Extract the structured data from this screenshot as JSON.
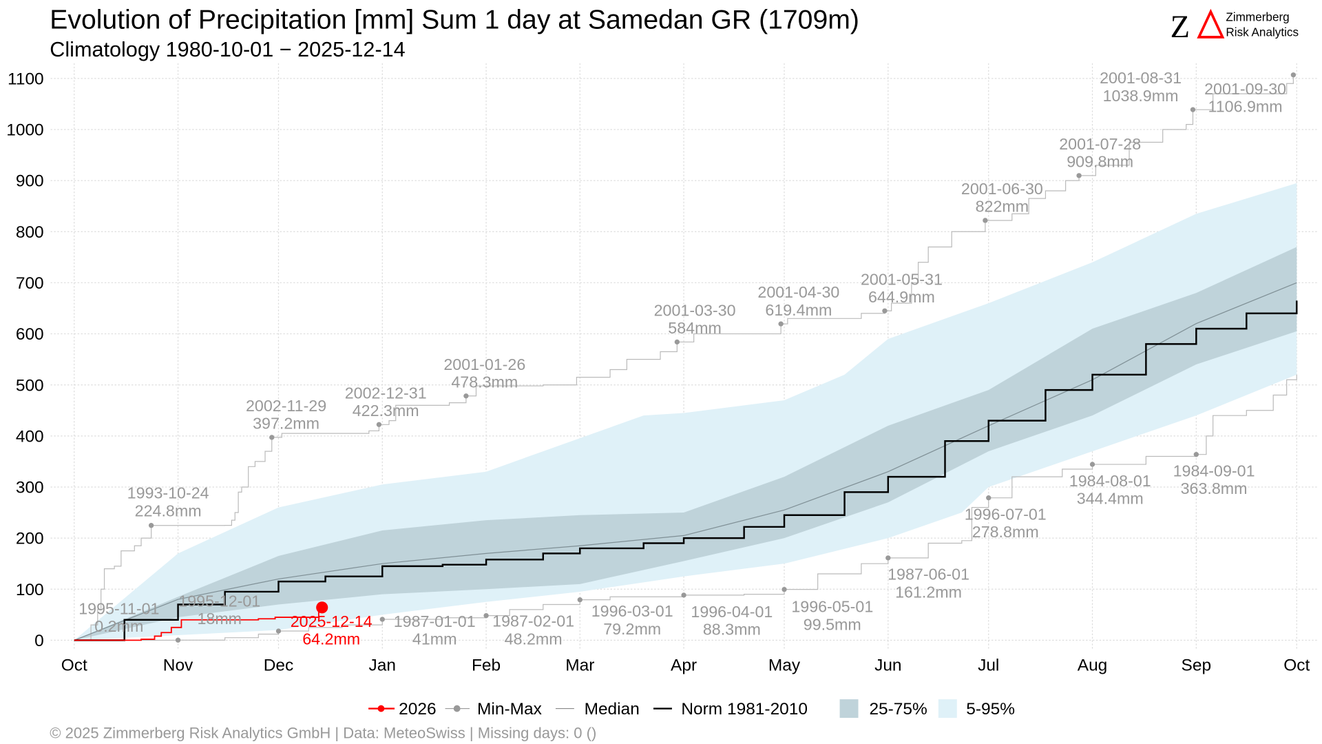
{
  "header": {
    "title": "Evolution of Precipitation [mm] Sum 1 day at Samedan  GR (1709m)",
    "subtitle": "Climatology 1980-10-01 − 2025-12-14"
  },
  "logo": {
    "mark": "ZΔ",
    "line1": "Zimmerberg",
    "line2": "Risk Analytics"
  },
  "footer": "©  2025 Zimmerberg Risk Analytics GmbH | Data: MeteoSwiss | Missing days: 0 ()",
  "chart_data": {
    "type": "line",
    "title": "Evolution of Precipitation [mm] Sum 1 day at Samedan  GR (1709m)",
    "xlabel": "",
    "ylabel": "",
    "x_unit": "day of hydrological year (starting Oct 1)",
    "ylim": [
      0,
      1100
    ],
    "yticks": [
      0,
      100,
      200,
      300,
      400,
      500,
      600,
      700,
      800,
      900,
      1000,
      1100
    ],
    "xticks": [
      {
        "day": 0,
        "label": "Oct"
      },
      {
        "day": 31,
        "label": "Nov"
      },
      {
        "day": 61,
        "label": "Dec"
      },
      {
        "day": 92,
        "label": "Jan"
      },
      {
        "day": 123,
        "label": "Feb"
      },
      {
        "day": 151,
        "label": "Mar"
      },
      {
        "day": 182,
        "label": "Apr"
      },
      {
        "day": 212,
        "label": "May"
      },
      {
        "day": 243,
        "label": "Jun"
      },
      {
        "day": 273,
        "label": "Jul"
      },
      {
        "day": 304,
        "label": "Aug"
      },
      {
        "day": 335,
        "label": "Sep"
      },
      {
        "day": 365,
        "label": "Oct"
      }
    ],
    "grid": true,
    "legend_position": "bottom",
    "legend": [
      {
        "label": "2026",
        "kind": "line-point",
        "color": "#ff0000"
      },
      {
        "label": "Min-Max",
        "kind": "line-point",
        "color": "#999999"
      },
      {
        "label": "Median",
        "kind": "line",
        "color": "#888888"
      },
      {
        "label": "Norm 1981-2010",
        "kind": "line",
        "color": "#000000"
      },
      {
        "label": "25-75%",
        "kind": "fill",
        "color": "#bfd3da"
      },
      {
        "label": "5-95%",
        "kind": "fill",
        "color": "#dff1f8"
      }
    ],
    "band_5_95": {
      "upper": [
        [
          0,
          0
        ],
        [
          31,
          170
        ],
        [
          61,
          260
        ],
        [
          92,
          305
        ],
        [
          123,
          330
        ],
        [
          140,
          370
        ],
        [
          170,
          440
        ],
        [
          182,
          445
        ],
        [
          212,
          470
        ],
        [
          230,
          520
        ],
        [
          243,
          590
        ],
        [
          273,
          660
        ],
        [
          304,
          740
        ],
        [
          335,
          835
        ],
        [
          365,
          895
        ]
      ],
      "lower": [
        [
          0,
          0
        ],
        [
          31,
          10
        ],
        [
          61,
          20
        ],
        [
          92,
          50
        ],
        [
          123,
          75
        ],
        [
          151,
          95
        ],
        [
          182,
          125
        ],
        [
          212,
          150
        ],
        [
          243,
          200
        ],
        [
          265,
          250
        ],
        [
          273,
          300
        ],
        [
          304,
          370
        ],
        [
          335,
          440
        ],
        [
          365,
          520
        ]
      ]
    },
    "band_25_75": {
      "upper": [
        [
          0,
          0
        ],
        [
          31,
          85
        ],
        [
          61,
          165
        ],
        [
          92,
          215
        ],
        [
          123,
          235
        ],
        [
          151,
          245
        ],
        [
          182,
          250
        ],
        [
          212,
          320
        ],
        [
          243,
          420
        ],
        [
          273,
          490
        ],
        [
          304,
          610
        ],
        [
          335,
          680
        ],
        [
          365,
          770
        ]
      ],
      "lower": [
        [
          0,
          0
        ],
        [
          31,
          45
        ],
        [
          61,
          70
        ],
        [
          92,
          90
        ],
        [
          123,
          100
        ],
        [
          151,
          110
        ],
        [
          182,
          155
        ],
        [
          212,
          200
        ],
        [
          243,
          270
        ],
        [
          273,
          370
        ],
        [
          304,
          440
        ],
        [
          335,
          540
        ],
        [
          365,
          605
        ]
      ]
    },
    "median": [
      [
        0,
        0
      ],
      [
        31,
        80
      ],
      [
        61,
        120
      ],
      [
        92,
        150
      ],
      [
        123,
        170
      ],
      [
        151,
        185
      ],
      [
        182,
        205
      ],
      [
        212,
        255
      ],
      [
        243,
        330
      ],
      [
        273,
        420
      ],
      [
        304,
        510
      ],
      [
        335,
        620
      ],
      [
        365,
        700
      ]
    ],
    "norm": [
      [
        0,
        0
      ],
      [
        15,
        40
      ],
      [
        31,
        70
      ],
      [
        45,
        95
      ],
      [
        61,
        115
      ],
      [
        75,
        125
      ],
      [
        92,
        145
      ],
      [
        110,
        148
      ],
      [
        123,
        158
      ],
      [
        140,
        170
      ],
      [
        151,
        180
      ],
      [
        170,
        190
      ],
      [
        182,
        200
      ],
      [
        200,
        222
      ],
      [
        212,
        245
      ],
      [
        230,
        290
      ],
      [
        243,
        320
      ],
      [
        260,
        390
      ],
      [
        273,
        430
      ],
      [
        290,
        490
      ],
      [
        304,
        520
      ],
      [
        320,
        580
      ],
      [
        335,
        610
      ],
      [
        350,
        640
      ],
      [
        365,
        665
      ]
    ],
    "max": [
      [
        0,
        0
      ],
      [
        5,
        30
      ],
      [
        7,
        60
      ],
      [
        8,
        100
      ],
      [
        9,
        140
      ],
      [
        12,
        145
      ],
      [
        14,
        175
      ],
      [
        18,
        185
      ],
      [
        20,
        200
      ],
      [
        23,
        224.8
      ],
      [
        45,
        225
      ],
      [
        47,
        235
      ],
      [
        48,
        250
      ],
      [
        49,
        290
      ],
      [
        50,
        300
      ],
      [
        52,
        340
      ],
      [
        54,
        350
      ],
      [
        57,
        370
      ],
      [
        59,
        397.2
      ],
      [
        62,
        405
      ],
      [
        88,
        410
      ],
      [
        91,
        422.3
      ],
      [
        94,
        430
      ],
      [
        96,
        460
      ],
      [
        112,
        465
      ],
      [
        117,
        478.3
      ],
      [
        120,
        498
      ],
      [
        140,
        500
      ],
      [
        150,
        515
      ],
      [
        160,
        530
      ],
      [
        165,
        550
      ],
      [
        175,
        565
      ],
      [
        180,
        584
      ],
      [
        185,
        600
      ],
      [
        211,
        619.4
      ],
      [
        213,
        630
      ],
      [
        235,
        640
      ],
      [
        242,
        644.9
      ],
      [
        244,
        660
      ],
      [
        250,
        700
      ],
      [
        252,
        740
      ],
      [
        255,
        770
      ],
      [
        262,
        800
      ],
      [
        272,
        822
      ],
      [
        280,
        835
      ],
      [
        285,
        865
      ],
      [
        290,
        880
      ],
      [
        296,
        900
      ],
      [
        300,
        909.8
      ],
      [
        305,
        930
      ],
      [
        315,
        975
      ],
      [
        325,
        1000
      ],
      [
        332,
        1010
      ],
      [
        334,
        1038.9
      ],
      [
        340,
        1070
      ],
      [
        362,
        1090
      ],
      [
        364,
        1106.9
      ]
    ],
    "min": [
      [
        0,
        0
      ],
      [
        31,
        0.2
      ],
      [
        45,
        5
      ],
      [
        55,
        12
      ],
      [
        61,
        18
      ],
      [
        70,
        25
      ],
      [
        80,
        30
      ],
      [
        92,
        41
      ],
      [
        110,
        44
      ],
      [
        123,
        48.2
      ],
      [
        130,
        60
      ],
      [
        140,
        70
      ],
      [
        151,
        79.2
      ],
      [
        160,
        85
      ],
      [
        182,
        88.3
      ],
      [
        200,
        90
      ],
      [
        212,
        99.5
      ],
      [
        222,
        130
      ],
      [
        235,
        150
      ],
      [
        243,
        161.2
      ],
      [
        255,
        190
      ],
      [
        265,
        195
      ],
      [
        268,
        260
      ],
      [
        273,
        278.8
      ],
      [
        280,
        320
      ],
      [
        295,
        335
      ],
      [
        304,
        344.4
      ],
      [
        320,
        360
      ],
      [
        335,
        363.8
      ],
      [
        338,
        400
      ],
      [
        340,
        440
      ],
      [
        350,
        450
      ],
      [
        358,
        480
      ],
      [
        362,
        510
      ],
      [
        365,
        520
      ]
    ],
    "current": [
      [
        0,
        0
      ],
      [
        20,
        2
      ],
      [
        24,
        8
      ],
      [
        26,
        15
      ],
      [
        29,
        25
      ],
      [
        32,
        40
      ],
      [
        55,
        42
      ],
      [
        60,
        45
      ],
      [
        73,
        58
      ],
      [
        74,
        64.2
      ]
    ],
    "max_annotations": [
      {
        "day": 23,
        "value": 224.8,
        "date": "1993-10-24",
        "label": "224.8mm"
      },
      {
        "day": 59,
        "value": 397.2,
        "date": "2002-11-29",
        "label": "397.2mm"
      },
      {
        "day": 91,
        "value": 422.3,
        "date": "2002-12-31",
        "label": "422.3mm"
      },
      {
        "day": 117,
        "value": 478.3,
        "date": "2001-01-26",
        "label": "478.3mm"
      },
      {
        "day": 180,
        "value": 584,
        "date": "2001-03-30",
        "label": "584mm"
      },
      {
        "day": 211,
        "value": 619.4,
        "date": "2001-04-30",
        "label": "619.4mm"
      },
      {
        "day": 242,
        "value": 644.9,
        "date": "2001-05-31",
        "label": "644.9mm"
      },
      {
        "day": 272,
        "value": 822,
        "date": "2001-06-30",
        "label": "822mm"
      },
      {
        "day": 300,
        "value": 909.8,
        "date": "2001-07-28",
        "label": "909.8mm"
      },
      {
        "day": 334,
        "value": 1038.9,
        "date": "2001-08-31",
        "label": "1038.9mm"
      },
      {
        "day": 364,
        "value": 1106.9,
        "date": "2001-09-30",
        "label": "1106.9mm"
      }
    ],
    "min_annotations": [
      {
        "day": 31,
        "value": 0.2,
        "date": "1995-11-01",
        "label": "0.2mm"
      },
      {
        "day": 61,
        "value": 18,
        "date": "1995-12-01",
        "label": "18mm"
      },
      {
        "day": 92,
        "value": 41,
        "date": "1987-01-01",
        "label": "41mm"
      },
      {
        "day": 123,
        "value": 48.2,
        "date": "1987-02-01",
        "label": "48.2mm"
      },
      {
        "day": 151,
        "value": 79.2,
        "date": "1996-03-01",
        "label": "79.2mm"
      },
      {
        "day": 182,
        "value": 88.3,
        "date": "1996-04-01",
        "label": "88.3mm"
      },
      {
        "day": 212,
        "value": 99.5,
        "date": "1996-05-01",
        "label": "99.5mm"
      },
      {
        "day": 243,
        "value": 161.2,
        "date": "1987-06-01",
        "label": "161.2mm"
      },
      {
        "day": 273,
        "value": 278.8,
        "date": "1996-07-01",
        "label": "278.8mm"
      },
      {
        "day": 304,
        "value": 344.4,
        "date": "1984-08-01",
        "label": "344.4mm"
      },
      {
        "day": 335,
        "value": 363.8,
        "date": "1984-09-01",
        "label": "363.8mm"
      }
    ],
    "current_annotation": {
      "day": 74,
      "value": 64.2,
      "date": "2025-12-14",
      "label": "64.2mm"
    }
  }
}
